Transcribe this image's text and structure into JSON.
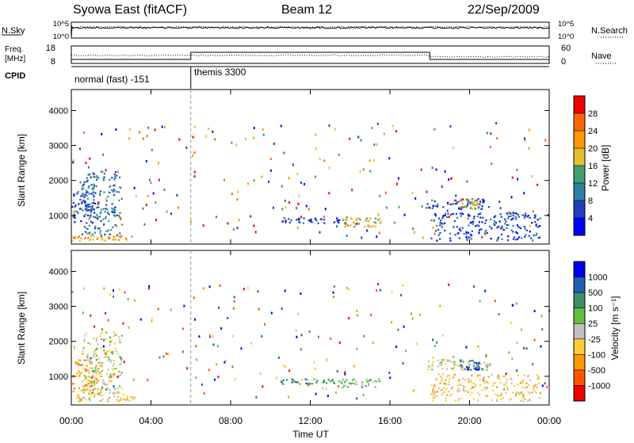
{
  "header": {
    "station": "Syowa East (fitACF)",
    "beam": "Beam 12",
    "date": "22/Sep/2009"
  },
  "nsky_panel": {
    "label": "N.Sky",
    "right_label": "N.Search",
    "ticks": [
      "10^5",
      "10^0"
    ],
    "right_ticks": [
      "10^5",
      "10^0"
    ]
  },
  "freq_panel": {
    "label_line1": "Freq.",
    "label_line2": "[MHz]",
    "right_label": "Nave",
    "ticks": [
      "18",
      "8"
    ],
    "right_ticks": [
      "60",
      "0"
    ]
  },
  "cpid_panel": {
    "label": "CPID",
    "programs": [
      {
        "name": "normal (fast) -151",
        "start_h": 0,
        "end_h": 6
      },
      {
        "name": "themis 3300",
        "start_h": 6,
        "end_h": 24
      }
    ]
  },
  "time_axis": {
    "label": "Time UT",
    "tick_labels": [
      "00:00",
      "04:00",
      "08:00",
      "12:00",
      "16:00",
      "20:00",
      "00:00"
    ],
    "tick_hours": [
      0,
      4,
      8,
      12,
      16,
      20,
      24
    ]
  },
  "colors": {
    "power": [
      "#0000ff",
      "#1f3fbf",
      "#2f7fa0",
      "#3f9f6f",
      "#e0c030",
      "#ff9900",
      "#ff6600",
      "#ee0000"
    ],
    "velocity": [
      "#ee0000",
      "#ff5500",
      "#ff9900",
      "#ffcc33",
      "#c0c0c0",
      "#60c040",
      "#3f8f6f",
      "#2060b0",
      "#0000ee"
    ]
  },
  "chart_data": [
    {
      "type": "heatmap",
      "name": "power-panel",
      "ylabel": "Slant Range [km]",
      "ylim": [
        180,
        4600
      ],
      "xlim": [
        0,
        24
      ],
      "y_ticks": [
        "1000",
        "2000",
        "3000",
        "4000"
      ],
      "colorbar": {
        "label": "Power [dB]",
        "range": [
          0,
          32
        ],
        "tick_labels": [
          "4",
          "8",
          "12",
          "16",
          "20",
          "24",
          "28"
        ]
      },
      "echo_regions": [
        {
          "t0": 0.0,
          "t1": 3.2,
          "r0": 300,
          "r1": 450,
          "level": 5
        },
        {
          "t0": 0.0,
          "t1": 1.2,
          "r0": 800,
          "r1": 1700,
          "level": 1
        },
        {
          "t0": 0.5,
          "t1": 2.5,
          "r0": 450,
          "r1": 2300,
          "level": 2
        },
        {
          "t0": 13.5,
          "t1": 15.5,
          "r0": 700,
          "r1": 950,
          "level": 4
        },
        {
          "t0": 10.5,
          "t1": 13.5,
          "r0": 800,
          "r1": 950,
          "level": 1
        },
        {
          "t0": 17.8,
          "t1": 21.0,
          "r0": 1200,
          "r1": 1500,
          "level": 1
        },
        {
          "t0": 19.5,
          "t1": 20.5,
          "r0": 1200,
          "r1": 1500,
          "level": 4
        },
        {
          "t0": 18.0,
          "t1": 23.5,
          "r0": 300,
          "r1": 1100,
          "level": 1
        }
      ]
    },
    {
      "type": "heatmap",
      "name": "velocity-panel",
      "ylabel": "Slant Range [km]",
      "ylim": [
        180,
        4600
      ],
      "xlim": [
        0,
        24
      ],
      "y_ticks": [
        "1000",
        "2000",
        "3000",
        "4000"
      ],
      "colorbar": {
        "label": "Velocity [m s⁻¹]",
        "range": [
          -1200,
          1200
        ],
        "tick_labels": [
          "1000",
          "500",
          "100",
          "25",
          "-25",
          "-100",
          "-500",
          "-1000"
        ]
      },
      "echo_regions": [
        {
          "t0": 0.0,
          "t1": 3.2,
          "r0": 300,
          "r1": 500,
          "level": 3
        },
        {
          "t0": 0.0,
          "t1": 1.5,
          "r0": 500,
          "r1": 1500,
          "level": 2
        },
        {
          "t0": 0.5,
          "t1": 2.5,
          "r0": 500,
          "r1": 2300,
          "level": 4
        },
        {
          "t0": 13.5,
          "t1": 15.5,
          "r0": 700,
          "r1": 950,
          "level": 5
        },
        {
          "t0": 10.5,
          "t1": 13.5,
          "r0": 800,
          "r1": 950,
          "level": 6
        },
        {
          "t0": 17.8,
          "t1": 21.0,
          "r0": 1200,
          "r1": 1500,
          "level": 4
        },
        {
          "t0": 19.5,
          "t1": 20.5,
          "r0": 1200,
          "r1": 1500,
          "level": 7
        },
        {
          "t0": 18.0,
          "t1": 23.5,
          "r0": 300,
          "r1": 1100,
          "level": 3
        }
      ]
    }
  ]
}
